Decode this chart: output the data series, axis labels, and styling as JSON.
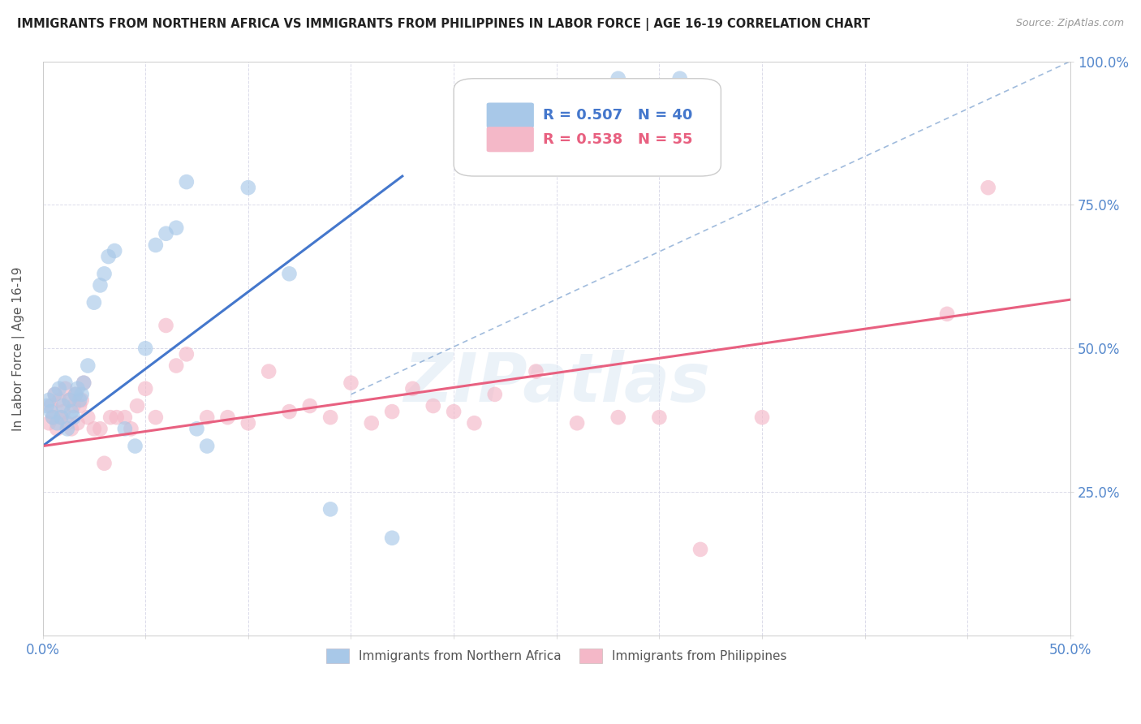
{
  "title": "IMMIGRANTS FROM NORTHERN AFRICA VS IMMIGRANTS FROM PHILIPPINES IN LABOR FORCE | AGE 16-19 CORRELATION CHART",
  "source": "Source: ZipAtlas.com",
  "ylabel": "In Labor Force | Age 16-19",
  "xlim": [
    0.0,
    0.5
  ],
  "ylim": [
    0.0,
    1.0
  ],
  "xticks": [
    0.0,
    0.05,
    0.1,
    0.15,
    0.2,
    0.25,
    0.3,
    0.35,
    0.4,
    0.45,
    0.5
  ],
  "yticks": [
    0.0,
    0.25,
    0.5,
    0.75,
    1.0
  ],
  "xtick_labels": [
    "0.0%",
    "",
    "",
    "",
    "",
    "",
    "",
    "",
    "",
    "",
    "50.0%"
  ],
  "ytick_labels_right": [
    "",
    "25.0%",
    "50.0%",
    "75.0%",
    "100.0%"
  ],
  "r_blue": 0.507,
  "n_blue": 40,
  "r_pink": 0.538,
  "n_pink": 55,
  "blue_color": "#a8c8e8",
  "pink_color": "#f4b8c8",
  "blue_line_color": "#4477cc",
  "pink_line_color": "#e86080",
  "dashed_line_color": "#88aad4",
  "legend_label_blue": "Immigrants from Northern Africa",
  "legend_label_pink": "Immigrants from Philippines",
  "blue_line_x0": 0.0,
  "blue_line_y0": 0.33,
  "blue_line_x1": 0.175,
  "blue_line_y1": 0.8,
  "pink_line_x0": 0.0,
  "pink_line_y0": 0.33,
  "pink_line_x1": 0.5,
  "pink_line_y1": 0.585,
  "dash_line_x0": 0.15,
  "dash_line_y0": 0.42,
  "dash_line_x1": 0.5,
  "dash_line_y1": 1.0,
  "blue_scatter_x": [
    0.002,
    0.003,
    0.004,
    0.005,
    0.006,
    0.007,
    0.008,
    0.009,
    0.01,
    0.011,
    0.012,
    0.013,
    0.014,
    0.015,
    0.016,
    0.017,
    0.018,
    0.019,
    0.02,
    0.022,
    0.025,
    0.028,
    0.03,
    0.032,
    0.035,
    0.04,
    0.045,
    0.05,
    0.055,
    0.06,
    0.065,
    0.07,
    0.075,
    0.08,
    0.1,
    0.12,
    0.14,
    0.17,
    0.28,
    0.31
  ],
  "blue_scatter_y": [
    0.4,
    0.41,
    0.39,
    0.38,
    0.42,
    0.37,
    0.43,
    0.38,
    0.4,
    0.44,
    0.36,
    0.41,
    0.39,
    0.38,
    0.42,
    0.43,
    0.41,
    0.42,
    0.44,
    0.47,
    0.58,
    0.61,
    0.63,
    0.66,
    0.67,
    0.36,
    0.33,
    0.5,
    0.68,
    0.7,
    0.71,
    0.79,
    0.36,
    0.33,
    0.78,
    0.63,
    0.22,
    0.17,
    0.97,
    0.97
  ],
  "pink_scatter_x": [
    0.003,
    0.004,
    0.005,
    0.006,
    0.007,
    0.008,
    0.009,
    0.01,
    0.011,
    0.012,
    0.013,
    0.014,
    0.015,
    0.016,
    0.017,
    0.018,
    0.019,
    0.02,
    0.022,
    0.025,
    0.028,
    0.03,
    0.033,
    0.036,
    0.04,
    0.043,
    0.046,
    0.05,
    0.055,
    0.06,
    0.065,
    0.07,
    0.08,
    0.09,
    0.1,
    0.11,
    0.12,
    0.13,
    0.14,
    0.15,
    0.16,
    0.17,
    0.18,
    0.19,
    0.2,
    0.21,
    0.22,
    0.24,
    0.26,
    0.28,
    0.3,
    0.32,
    0.35,
    0.44,
    0.46
  ],
  "pink_scatter_y": [
    0.37,
    0.4,
    0.38,
    0.42,
    0.36,
    0.41,
    0.38,
    0.39,
    0.43,
    0.37,
    0.41,
    0.36,
    0.4,
    0.42,
    0.37,
    0.4,
    0.41,
    0.44,
    0.38,
    0.36,
    0.36,
    0.3,
    0.38,
    0.38,
    0.38,
    0.36,
    0.4,
    0.43,
    0.38,
    0.54,
    0.47,
    0.49,
    0.38,
    0.38,
    0.37,
    0.46,
    0.39,
    0.4,
    0.38,
    0.44,
    0.37,
    0.39,
    0.43,
    0.4,
    0.39,
    0.37,
    0.42,
    0.46,
    0.37,
    0.38,
    0.38,
    0.15,
    0.38,
    0.56,
    0.78
  ]
}
